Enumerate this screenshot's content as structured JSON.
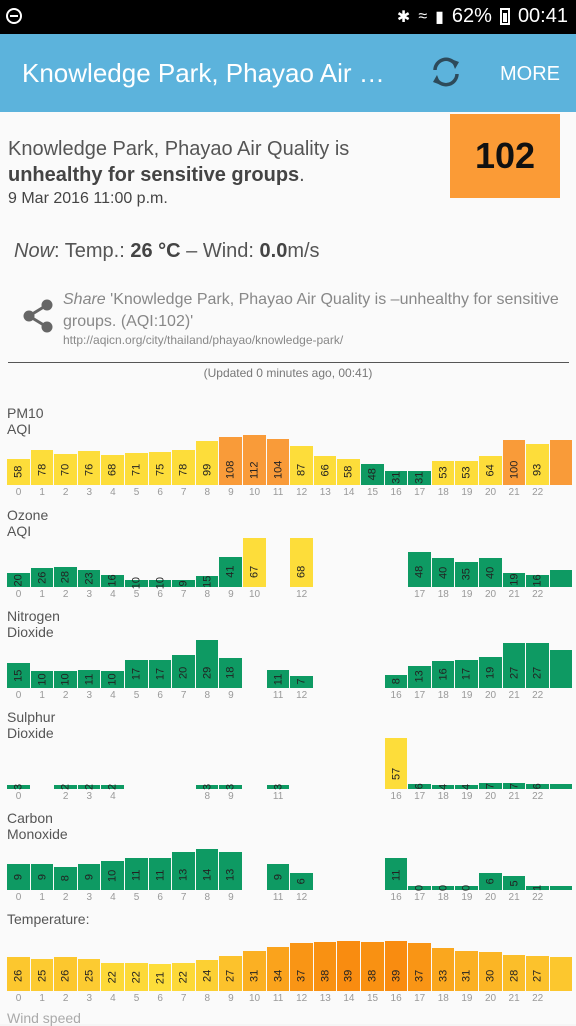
{
  "status_bar": {
    "battery": "62%",
    "time": "00:41"
  },
  "app_bar": {
    "title": "Knowledge Park, Phayao Air Quality",
    "more_label": "MORE"
  },
  "summary": {
    "headline_prefix": "Knowledge Park, Phayao Air Quality is",
    "headline_status": "unhealthy for sensitive groups",
    "headline_end": ".",
    "datetime": "9 Mar 2016 11:00 p.m.",
    "aqi": "102",
    "aqi_color": "#fb9b36"
  },
  "now": {
    "label": "Now",
    "temp_label": ": Temp.: ",
    "temp_value": "26 °C",
    "wind_label": " – Wind: ",
    "wind_value": "0.0",
    "wind_unit": "m/s"
  },
  "share": {
    "label": "Share",
    "text": " 'Knowledge Park, Phayao Air Quality is –unhealthy for sensitive groups. (AQI:102)'",
    "url": "http://aqicn.org/city/thailand/phayao/knowledge-park/"
  },
  "updated": "(Updated 0 minutes ago, 00:41)",
  "colors": {
    "good": "#0e9a63",
    "moderate": "#fddd3a",
    "usg": "#f99b39",
    "temp_low": "#fddd3a",
    "temp_high": "#f98c10"
  },
  "charts": [
    {
      "title": "PM10 AQI",
      "ylim": [
        0,
        130
      ],
      "values": [
        58,
        78,
        70,
        76,
        68,
        71,
        75,
        78,
        99,
        108,
        112,
        104,
        87,
        66,
        58,
        48,
        31,
        31,
        53,
        53,
        64,
        100,
        93,
        100
      ],
      "colors": [
        "moderate",
        "moderate",
        "moderate",
        "moderate",
        "moderate",
        "moderate",
        "moderate",
        "moderate",
        "moderate",
        "usg",
        "usg",
        "usg",
        "moderate",
        "moderate",
        "moderate",
        "good",
        "good",
        "good",
        "moderate",
        "moderate",
        "moderate",
        "usg",
        "moderate",
        "usg"
      ],
      "labels": [
        "58",
        "78",
        "70",
        "76",
        "68",
        "71",
        "75",
        "78",
        "99",
        "108",
        "112",
        "104",
        "87",
        "66",
        "58",
        "48",
        "31",
        "31",
        "53",
        "53",
        "64",
        "100",
        "93",
        ""
      ],
      "ticks": [
        "0",
        "1",
        "2",
        "3",
        "4",
        "5",
        "6",
        "7",
        "8",
        "9",
        "10",
        "11",
        "12",
        "13",
        "14",
        "15",
        "16",
        "17",
        "18",
        "19",
        "20",
        "21",
        "22",
        ""
      ]
    },
    {
      "title": "Ozone AQI",
      "ylim": [
        0,
        80
      ],
      "values": [
        20,
        26,
        28,
        23,
        16,
        10,
        10,
        9,
        15,
        41,
        67,
        null,
        68,
        null,
        null,
        null,
        null,
        48,
        40,
        35,
        40,
        19,
        16,
        23
      ],
      "colors": [
        "good",
        "good",
        "good",
        "good",
        "good",
        "good",
        "good",
        "good",
        "good",
        "good",
        "moderate",
        "good",
        "moderate",
        "good",
        "good",
        "good",
        "good",
        "good",
        "good",
        "good",
        "good",
        "good",
        "good",
        "good"
      ],
      "labels": [
        "20",
        "26",
        "28",
        "23",
        "16",
        "10",
        "10",
        "9",
        "15",
        "41",
        "67",
        "",
        "68",
        "",
        "",
        "",
        "",
        "48",
        "40",
        "35",
        "40",
        "19",
        "16",
        ""
      ],
      "ticks": [
        "0",
        "1",
        "2",
        "3",
        "4",
        "5",
        "6",
        "7",
        "8",
        "9",
        "10",
        "",
        "12",
        "",
        "",
        "",
        "",
        "17",
        "18",
        "19",
        "20",
        "21",
        "22",
        ""
      ]
    },
    {
      "title": "Nitrogen Dioxide",
      "ylim": [
        0,
        35
      ],
      "values": [
        15,
        10,
        10,
        11,
        10,
        17,
        17,
        20,
        29,
        18,
        null,
        11,
        7,
        null,
        null,
        null,
        8,
        13,
        16,
        17,
        19,
        27,
        27,
        23
      ],
      "colors": [
        "good",
        "good",
        "good",
        "good",
        "good",
        "good",
        "good",
        "good",
        "good",
        "good",
        "good",
        "good",
        "good",
        "good",
        "good",
        "good",
        "good",
        "good",
        "good",
        "good",
        "good",
        "good",
        "good",
        "good"
      ],
      "labels": [
        "15",
        "10",
        "10",
        "11",
        "10",
        "17",
        "17",
        "20",
        "29",
        "18",
        "",
        "11",
        "7",
        "",
        "",
        "",
        "8",
        "13",
        "16",
        "17",
        "19",
        "27",
        "27",
        ""
      ],
      "ticks": [
        "0",
        "1",
        "2",
        "3",
        "4",
        "5",
        "6",
        "7",
        "8",
        "9",
        "",
        "11",
        "12",
        "",
        "",
        "",
        "16",
        "17",
        "18",
        "19",
        "20",
        "21",
        "22",
        ""
      ]
    },
    {
      "title": "Sulphur Dioxide",
      "ylim": [
        0,
        65
      ],
      "values": [
        3,
        null,
        2,
        2,
        2,
        null,
        null,
        null,
        3,
        3,
        null,
        3,
        null,
        null,
        null,
        null,
        57,
        6,
        4,
        4,
        7,
        7,
        6,
        6
      ],
      "colors": [
        "good",
        "good",
        "good",
        "good",
        "good",
        "good",
        "good",
        "good",
        "good",
        "good",
        "good",
        "good",
        "good",
        "good",
        "good",
        "good",
        "moderate",
        "good",
        "good",
        "good",
        "good",
        "good",
        "good",
        "good"
      ],
      "labels": [
        "3",
        "",
        "2",
        "2",
        "2",
        "",
        "",
        "",
        "3",
        "3",
        "",
        "3",
        "",
        "",
        "",
        "",
        "57",
        "6",
        "4",
        "4",
        "7",
        "7",
        "6",
        ""
      ],
      "ticks": [
        "0",
        "",
        "2",
        "3",
        "4",
        "",
        "",
        "",
        "8",
        "9",
        "",
        "11",
        "",
        "",
        "",
        "",
        "16",
        "17",
        "18",
        "19",
        "20",
        "21",
        "22",
        ""
      ]
    },
    {
      "title": "Carbon Monoxide",
      "ylim": [
        0,
        20
      ],
      "values": [
        9,
        9,
        8,
        9,
        10,
        11,
        11,
        13,
        14,
        13,
        null,
        9,
        6,
        null,
        null,
        null,
        11,
        0,
        0,
        0,
        6,
        5,
        1,
        1
      ],
      "colors": [
        "good",
        "good",
        "good",
        "good",
        "good",
        "good",
        "good",
        "good",
        "good",
        "good",
        "good",
        "good",
        "good",
        "good",
        "good",
        "good",
        "good",
        "good",
        "good",
        "good",
        "good",
        "good",
        "good",
        "good"
      ],
      "labels": [
        "9",
        "9",
        "8",
        "9",
        "10",
        "11",
        "11",
        "13",
        "14",
        "13",
        "",
        "9",
        "6",
        "",
        "",
        "",
        "11",
        "0",
        "0",
        "0",
        "6",
        "5",
        "1",
        ""
      ],
      "ticks": [
        "0",
        "1",
        "2",
        "3",
        "4",
        "5",
        "6",
        "7",
        "8",
        "9",
        "",
        "11",
        "12",
        "",
        "",
        "",
        "16",
        "17",
        "18",
        "19",
        "20",
        "21",
        "22",
        ""
      ]
    },
    {
      "title": "Temperature:",
      "ylim": [
        0,
        45
      ],
      "values": [
        26,
        25,
        26,
        25,
        22,
        22,
        21,
        22,
        24,
        27,
        31,
        34,
        37,
        38,
        39,
        38,
        39,
        37,
        33,
        31,
        30,
        28,
        27,
        26
      ],
      "colors": [
        "temp",
        "temp",
        "temp",
        "temp",
        "temp",
        "temp",
        "temp",
        "temp",
        "temp",
        "temp",
        "temp",
        "temp",
        "temp",
        "temp",
        "temp",
        "temp",
        "temp",
        "temp",
        "temp",
        "temp",
        "temp",
        "temp",
        "temp",
        "temp"
      ],
      "labels": [
        "26",
        "25",
        "26",
        "25",
        "22",
        "22",
        "21",
        "22",
        "24",
        "27",
        "31",
        "34",
        "37",
        "38",
        "39",
        "38",
        "39",
        "37",
        "33",
        "31",
        "30",
        "28",
        "27",
        ""
      ],
      "ticks": [
        "0",
        "1",
        "2",
        "3",
        "4",
        "5",
        "6",
        "7",
        "8",
        "9",
        "10",
        "11",
        "12",
        "13",
        "14",
        "15",
        "16",
        "17",
        "18",
        "19",
        "20",
        "21",
        "22",
        ""
      ]
    }
  ],
  "next_section_title": "Wind speed"
}
